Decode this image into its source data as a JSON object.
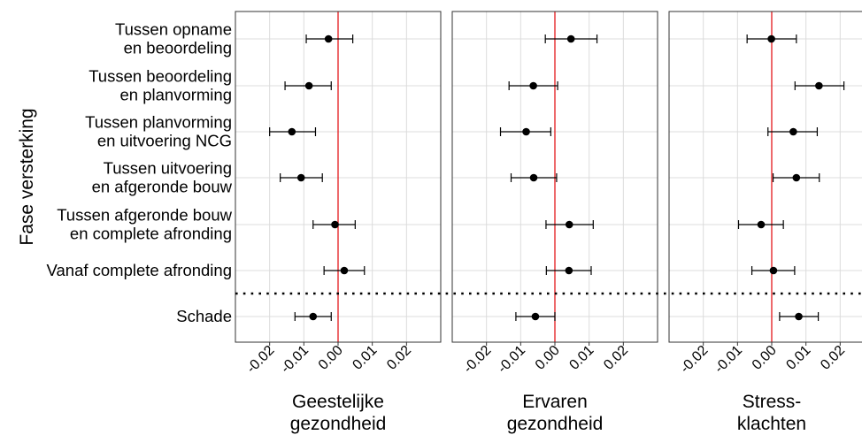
{
  "chart_data": {
    "type": "scatter",
    "subtype": "forest-plot",
    "y_axis_label": "Fase versterking",
    "categories": [
      [
        "Tussen opname",
        "en beoordeling"
      ],
      [
        "Tussen beoordeling",
        "en planvorming"
      ],
      [
        "Tussen planvorming",
        "en uitvoering NCG"
      ],
      [
        "Tussen uitvoering",
        "en afgeronde bouw"
      ],
      [
        "Tussen afgeronde bouw",
        "en complete afronding"
      ],
      [
        "Vanaf complete afronding"
      ],
      [
        "Schade"
      ]
    ],
    "xlim": [
      -0.03,
      0.03
    ],
    "x_ticks": [
      -0.02,
      -0.01,
      0.0,
      0.01,
      0.02
    ],
    "x_tick_labels": [
      "-0.02",
      "-0.01",
      "0.00",
      "0.01",
      "0.02"
    ],
    "reference_line": 0,
    "reference_line_color": "#e3191c",
    "separator_after_index": 5,
    "grid": true,
    "panels": [
      {
        "title": [
          "Geestelijke",
          "gezondheid"
        ],
        "points": [
          {
            "estimate": -0.0028,
            "lower": -0.0093,
            "upper": 0.0043
          },
          {
            "estimate": -0.0085,
            "lower": -0.0155,
            "upper": -0.002
          },
          {
            "estimate": -0.0135,
            "lower": -0.02,
            "upper": -0.0066
          },
          {
            "estimate": -0.0108,
            "lower": -0.0169,
            "upper": -0.0046
          },
          {
            "estimate": -0.0009,
            "lower": -0.0073,
            "upper": 0.005
          },
          {
            "estimate": 0.0018,
            "lower": -0.0041,
            "upper": 0.0077
          },
          {
            "estimate": -0.0073,
            "lower": -0.0126,
            "upper": -0.002
          }
        ]
      },
      {
        "title": [
          "Ervaren",
          "gezondheid"
        ],
        "points": [
          {
            "estimate": 0.0047,
            "lower": -0.0028,
            "upper": 0.0123
          },
          {
            "estimate": -0.0063,
            "lower": -0.0134,
            "upper": 0.0008
          },
          {
            "estimate": -0.0084,
            "lower": -0.0159,
            "upper": -0.0012
          },
          {
            "estimate": -0.0062,
            "lower": -0.0128,
            "upper": 0.0005
          },
          {
            "estimate": 0.0042,
            "lower": -0.0026,
            "upper": 0.0112
          },
          {
            "estimate": 0.0041,
            "lower": -0.0025,
            "upper": 0.0106
          },
          {
            "estimate": -0.0057,
            "lower": -0.0114,
            "upper": 0.0
          }
        ]
      },
      {
        "title": [
          "Stress-",
          "klachten"
        ],
        "points": [
          {
            "estimate": -0.0001,
            "lower": -0.0072,
            "upper": 0.0072
          },
          {
            "estimate": 0.0138,
            "lower": 0.0068,
            "upper": 0.0211
          },
          {
            "estimate": 0.0063,
            "lower": -0.0011,
            "upper": 0.0133
          },
          {
            "estimate": 0.0072,
            "lower": 0.0004,
            "upper": 0.0139
          },
          {
            "estimate": -0.0031,
            "lower": -0.0097,
            "upper": 0.0034
          },
          {
            "estimate": 0.0005,
            "lower": -0.0058,
            "upper": 0.0067
          },
          {
            "estimate": 0.0079,
            "lower": 0.0023,
            "upper": 0.0136
          }
        ]
      }
    ]
  }
}
